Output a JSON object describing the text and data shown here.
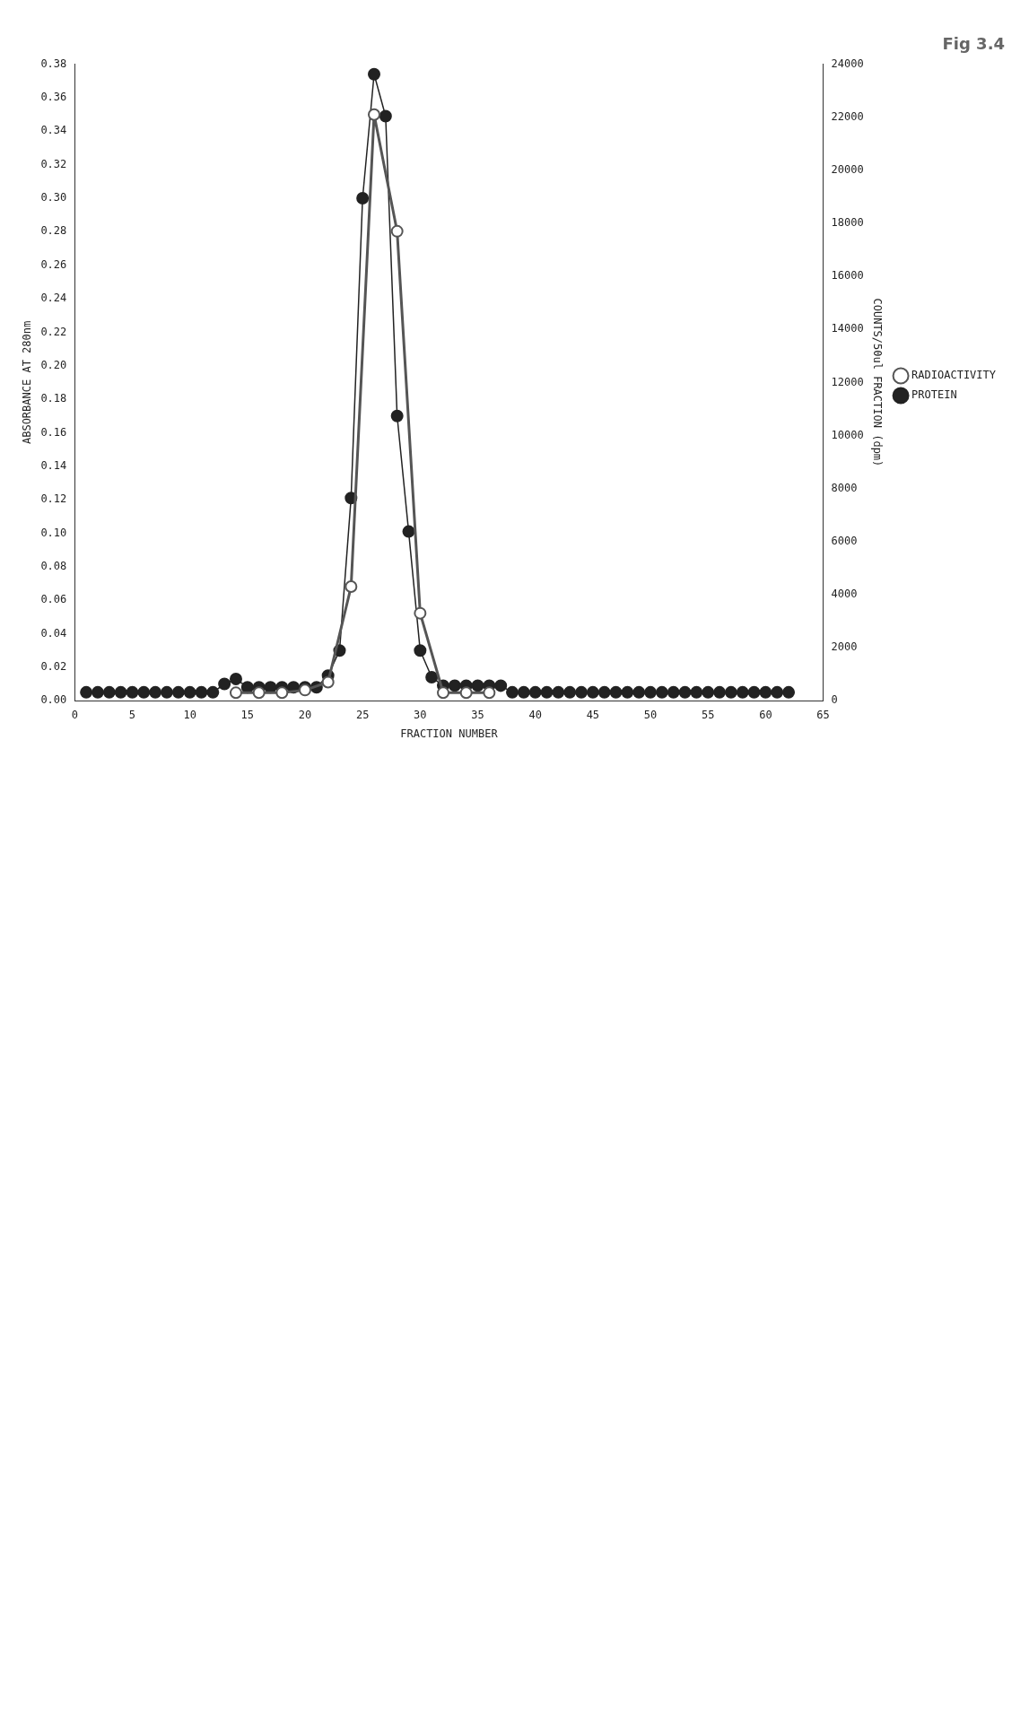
{
  "chart_data": {
    "type": "line",
    "title": "Fig 3.4",
    "xlabel": "FRACTION NUMBER",
    "ylabel": "ABSORBANCE AT 280nm",
    "y2label": "COUNTS/50ul FRACTION (dpm)",
    "xlim": [
      0,
      65
    ],
    "xticks": [
      0,
      5,
      10,
      15,
      20,
      25,
      30,
      35,
      40,
      45,
      50,
      55,
      60,
      65
    ],
    "ylim": [
      0,
      0.38
    ],
    "yticks": [
      {
        "value": 0,
        "label": "0.00"
      },
      {
        "value": 0.02,
        "label": "0.02"
      },
      {
        "value": 0.04,
        "label": "0.04"
      },
      {
        "value": 0.06,
        "label": "0.06"
      },
      {
        "value": 0.08,
        "label": "0.08"
      },
      {
        "value": 0.1,
        "label": "0.10"
      },
      {
        "value": 0.12,
        "label": "0.12"
      },
      {
        "value": 0.14,
        "label": "0.14"
      },
      {
        "value": 0.16,
        "label": "0.16"
      },
      {
        "value": 0.18,
        "label": "0.18"
      },
      {
        "value": 0.2,
        "label": "0.20"
      },
      {
        "value": 0.22,
        "label": "0.22"
      },
      {
        "value": 0.24,
        "label": "0.24"
      },
      {
        "value": 0.26,
        "label": "0.26"
      },
      {
        "value": 0.28,
        "label": "0.28"
      },
      {
        "value": 0.3,
        "label": "0.30"
      },
      {
        "value": 0.32,
        "label": "0.32"
      },
      {
        "value": 0.34,
        "label": "0.34"
      },
      {
        "value": 0.36,
        "label": "0.36"
      },
      {
        "value": 0.38,
        "label": "0.38"
      }
    ],
    "y2lim": [
      0,
      24000
    ],
    "y2ticks": [
      0,
      2000,
      4000,
      6000,
      8000,
      10000,
      12000,
      14000,
      16000,
      18000,
      20000,
      22000,
      24000
    ],
    "grid": false,
    "legend": "right",
    "marker": "circle",
    "line_style": "solid",
    "series": [
      {
        "name": "PROTEIN",
        "color": "#222222",
        "x": [
          1,
          2,
          3,
          4,
          5,
          6,
          7,
          8,
          9,
          10,
          11,
          12,
          13,
          14,
          15,
          16,
          17,
          18,
          19,
          20,
          21,
          22,
          23,
          24,
          25,
          26,
          27,
          28,
          29,
          30,
          31,
          32,
          33,
          34,
          35,
          36,
          37,
          38,
          39,
          40,
          41,
          42,
          43,
          44,
          45,
          46,
          47,
          48,
          49,
          50,
          51,
          52,
          53,
          54,
          55,
          56,
          57,
          58,
          59,
          60,
          61,
          62
        ],
        "values": [
          0.005,
          0.005,
          0.005,
          0.005,
          0.005,
          0.005,
          0.005,
          0.005,
          0.005,
          0.005,
          0.005,
          0.005,
          0.01,
          0.013,
          0.008,
          0.008,
          0.008,
          0.008,
          0.008,
          0.008,
          0.008,
          0.015,
          0.03,
          0.121,
          0.3,
          0.374,
          0.349,
          0.17,
          0.101,
          0.03,
          0.014,
          0.009,
          0.009,
          0.009,
          0.009,
          0.009,
          0.009,
          0.005,
          0.005,
          0.005,
          0.005,
          0.005,
          0.005,
          0.005,
          0.005,
          0.005,
          0.005,
          0.005,
          0.005,
          0.005,
          0.005,
          0.005,
          0.005,
          0.005,
          0.005,
          0.005,
          0.005,
          0.005,
          0.005,
          0.005,
          0.005,
          0.005
        ]
      },
      {
        "name": "RADIOACTIVITY",
        "color": "#555555",
        "axis": "y2",
        "x": [
          14,
          16,
          18,
          20,
          22,
          24,
          26,
          28,
          30,
          32,
          34,
          36
        ],
        "values": [
          300,
          300,
          300,
          400,
          700,
          4300,
          22100,
          17700,
          3300,
          300,
          300,
          300
        ]
      }
    ]
  }
}
